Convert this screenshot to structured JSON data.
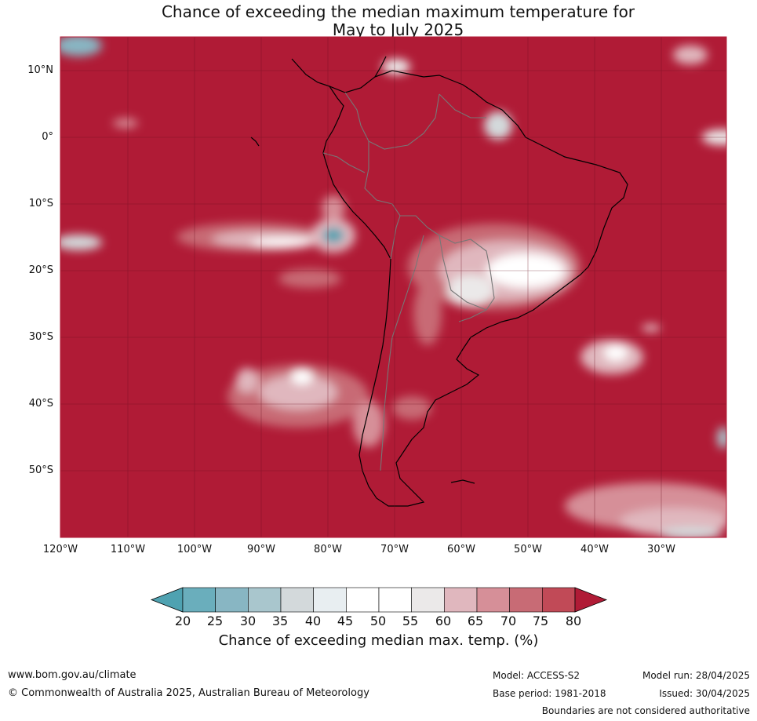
{
  "title": {
    "line1": "Chance of exceeding the median maximum temperature for",
    "line2": "May to July 2025"
  },
  "map": {
    "lat_labels": [
      "10°N",
      "0°",
      "10°S",
      "20°S",
      "30°S",
      "40°S",
      "50°S"
    ],
    "lon_labels": [
      "120°W",
      "110°W",
      "100°W",
      "90°W",
      "80°W",
      "70°W",
      "60°W",
      "50°W",
      "40°W",
      "30°W"
    ],
    "background_color": "#b01b36",
    "grid_color": "#6b1020"
  },
  "legend": {
    "ticks": [
      "20",
      "25",
      "30",
      "35",
      "40",
      "45",
      "50",
      "55",
      "60",
      "65",
      "70",
      "75",
      "80"
    ],
    "colors": [
      "#4fa2b1",
      "#6aaebc",
      "#88b6c3",
      "#a9c6cd",
      "#d3d9db",
      "#e8eef1",
      "#ffffff",
      "#ffffff",
      "#ebe9e9",
      "#e0b7be",
      "#d68f98",
      "#c86b75",
      "#c14a57",
      "#b01b36"
    ],
    "title": "Chance of exceeding median max. temp. (%)"
  },
  "footer": {
    "url": "www.bom.gov.au/climate",
    "copyright": "© Commonwealth of Australia 2025, Australian Bureau of Meteorology",
    "model": "Model: ACCESS-S2",
    "base_period": "Base period: 1981-2018",
    "model_run": "Model run: 28/04/2025",
    "issued": "Issued: 30/04/2025",
    "disclaimer": "Boundaries are not considered authoritative"
  }
}
